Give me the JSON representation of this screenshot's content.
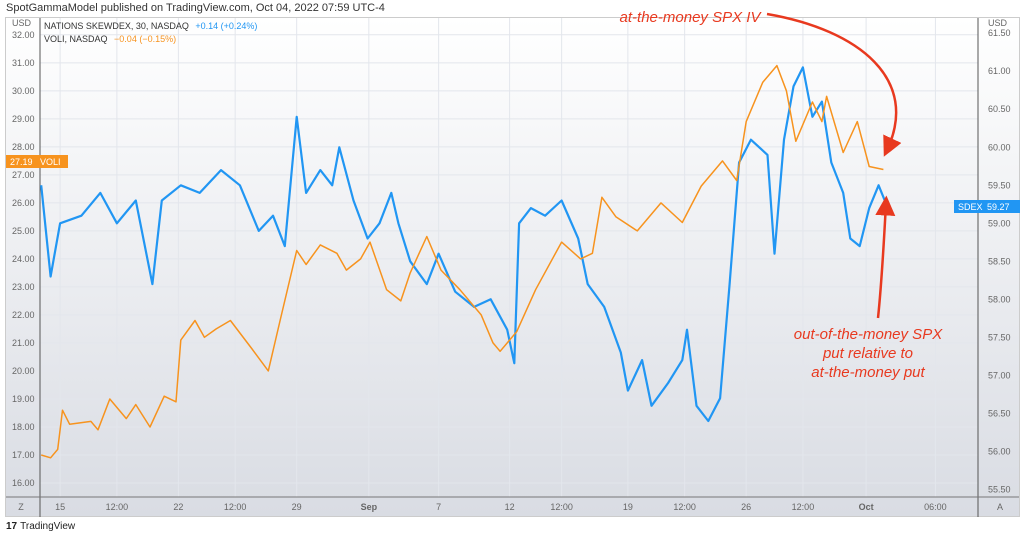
{
  "header": {
    "published": "SpotGammaModel published on TradingView.com, Oct 04, 2022 07:59 UTC-4"
  },
  "legend": [
    {
      "name": "NATIONS SKEWDEX, 30, NASDAQ",
      "change": "+0.14 (+0.24%)",
      "color": "#2196f3"
    },
    {
      "name": "VOLI, NASDAQ",
      "change": "−0.04 (−0.15%)",
      "color": "#f7931e"
    }
  ],
  "footer": {
    "brand": "TradingView",
    "left_button": "Z",
    "right_button": "A"
  },
  "chart_data": {
    "type": "line",
    "currency_left": "USD",
    "currency_right": "USD",
    "x_unit": "trading days from Aug 15, 2022",
    "x_ticks": [
      {
        "x": 0,
        "label": "15"
      },
      {
        "x": 2.4,
        "label": "12:00"
      },
      {
        "x": 5,
        "label": "22"
      },
      {
        "x": 7.4,
        "label": "12:00"
      },
      {
        "x": 10,
        "label": "29"
      },
      {
        "x": 13.05,
        "label": "Sep",
        "bold": true
      },
      {
        "x": 16,
        "label": "7"
      },
      {
        "x": 19,
        "label": "12"
      },
      {
        "x": 21.2,
        "label": "12:00"
      },
      {
        "x": 24,
        "label": "19"
      },
      {
        "x": 26.4,
        "label": "12:00"
      },
      {
        "x": 29,
        "label": "26"
      },
      {
        "x": 31.4,
        "label": "12:00"
      },
      {
        "x": 34.07,
        "label": "Oct",
        "bold": true
      },
      {
        "x": 37,
        "label": "06:00"
      }
    ],
    "xlim": [
      -0.85,
      38.8
    ],
    "left_axis": {
      "ylim": [
        15.5,
        32.6
      ],
      "ticks": [
        "32.00",
        "31.00",
        "30.00",
        "29.00",
        "28.00",
        "27.00",
        "26.00",
        "25.00",
        "24.00",
        "23.00",
        "22.00",
        "21.00",
        "20.00",
        "19.00",
        "18.00",
        "17.00",
        "16.00"
      ]
    },
    "right_axis": {
      "ylim": [
        55.4,
        61.7
      ],
      "ticks": [
        "61.50",
        "61.00",
        "60.50",
        "60.00",
        "59.50",
        "59.00",
        "58.50",
        "58.00",
        "57.50",
        "57.00",
        "56.50",
        "56.00",
        "55.50"
      ]
    },
    "series": [
      {
        "name": "SDEX",
        "axis": "right",
        "color": "#2196f3",
        "last": "59.27",
        "points": [
          [
            -0.8,
            59.5
          ],
          [
            -0.4,
            58.3
          ],
          [
            0,
            59.0
          ],
          [
            0.9,
            59.1
          ],
          [
            1.7,
            59.4
          ],
          [
            2.4,
            59.0
          ],
          [
            3.2,
            59.3
          ],
          [
            3.9,
            58.2
          ],
          [
            4.3,
            59.3
          ],
          [
            5.1,
            59.5
          ],
          [
            5.9,
            59.4
          ],
          [
            6.8,
            59.7
          ],
          [
            7.6,
            59.5
          ],
          [
            8.4,
            58.9
          ],
          [
            9.0,
            59.1
          ],
          [
            9.5,
            58.7
          ],
          [
            10.0,
            60.4
          ],
          [
            10.4,
            59.4
          ],
          [
            11.0,
            59.7
          ],
          [
            11.5,
            59.5
          ],
          [
            11.8,
            60.0
          ],
          [
            12.4,
            59.3
          ],
          [
            13.0,
            58.8
          ],
          [
            13.5,
            59.0
          ],
          [
            14.0,
            59.4
          ],
          [
            14.3,
            59.0
          ],
          [
            14.8,
            58.5
          ],
          [
            15.5,
            58.2
          ],
          [
            16.0,
            58.6
          ],
          [
            16.7,
            58.1
          ],
          [
            17.5,
            57.9
          ],
          [
            18.2,
            58.0
          ],
          [
            18.9,
            57.6
          ],
          [
            19.2,
            57.16
          ],
          [
            19.4,
            59.0
          ],
          [
            19.9,
            59.2
          ],
          [
            20.5,
            59.1
          ],
          [
            21.2,
            59.3
          ],
          [
            21.9,
            58.8
          ],
          [
            22.3,
            58.2
          ],
          [
            23.0,
            57.9
          ],
          [
            23.7,
            57.3
          ],
          [
            24.0,
            56.8
          ],
          [
            24.6,
            57.2
          ],
          [
            25.0,
            56.6
          ],
          [
            25.7,
            56.9
          ],
          [
            26.3,
            57.2
          ],
          [
            26.5,
            57.6
          ],
          [
            26.9,
            56.6
          ],
          [
            27.4,
            56.4
          ],
          [
            27.9,
            56.7
          ],
          [
            28.3,
            58.2
          ],
          [
            28.7,
            59.8
          ],
          [
            29.2,
            60.1
          ],
          [
            29.9,
            59.9
          ],
          [
            30.2,
            58.6
          ],
          [
            30.6,
            60.1
          ],
          [
            31.0,
            60.8
          ],
          [
            31.4,
            61.05
          ],
          [
            31.8,
            60.4
          ],
          [
            32.2,
            60.6
          ],
          [
            32.6,
            59.8
          ],
          [
            33.1,
            59.4
          ],
          [
            33.4,
            58.8
          ],
          [
            33.8,
            58.7
          ],
          [
            34.2,
            59.2
          ],
          [
            34.6,
            59.5
          ],
          [
            34.9,
            59.27
          ]
        ]
      },
      {
        "name": "VOLI",
        "axis": "left",
        "color": "#f7931e",
        "last": "27.19",
        "points": [
          [
            -0.8,
            17.0
          ],
          [
            -0.4,
            16.9
          ],
          [
            -0.1,
            17.2
          ],
          [
            0.1,
            18.6
          ],
          [
            0.4,
            18.1
          ],
          [
            1.3,
            18.2
          ],
          [
            1.6,
            17.9
          ],
          [
            2.1,
            19.0
          ],
          [
            2.8,
            18.3
          ],
          [
            3.2,
            18.8
          ],
          [
            3.8,
            18.0
          ],
          [
            4.4,
            19.1
          ],
          [
            4.9,
            18.9
          ],
          [
            5.1,
            21.1
          ],
          [
            5.7,
            21.8
          ],
          [
            6.1,
            21.2
          ],
          [
            6.6,
            21.5
          ],
          [
            7.2,
            21.8
          ],
          [
            8.1,
            20.8
          ],
          [
            8.8,
            20.0
          ],
          [
            9.3,
            21.8
          ],
          [
            10.0,
            24.3
          ],
          [
            10.4,
            23.8
          ],
          [
            11.0,
            24.5
          ],
          [
            11.7,
            24.2
          ],
          [
            12.1,
            23.6
          ],
          [
            12.7,
            24.0
          ],
          [
            13.1,
            24.6
          ],
          [
            13.8,
            22.9
          ],
          [
            14.4,
            22.5
          ],
          [
            14.8,
            23.5
          ],
          [
            15.5,
            24.8
          ],
          [
            16.1,
            23.6
          ],
          [
            16.9,
            22.9
          ],
          [
            17.8,
            22.0
          ],
          [
            18.3,
            21.0
          ],
          [
            18.6,
            20.7
          ],
          [
            19.3,
            21.4
          ],
          [
            20.1,
            22.9
          ],
          [
            21.2,
            24.6
          ],
          [
            22.0,
            24.0
          ],
          [
            22.5,
            24.2
          ],
          [
            22.9,
            26.2
          ],
          [
            23.5,
            25.5
          ],
          [
            24.4,
            25.0
          ],
          [
            25.4,
            26.0
          ],
          [
            26.3,
            25.3
          ],
          [
            27.1,
            26.6
          ],
          [
            28.0,
            27.5
          ],
          [
            28.6,
            26.8
          ],
          [
            29.0,
            28.9
          ],
          [
            29.7,
            30.3
          ],
          [
            30.3,
            30.9
          ],
          [
            30.7,
            30.0
          ],
          [
            31.1,
            28.2
          ],
          [
            31.8,
            29.6
          ],
          [
            32.2,
            28.9
          ],
          [
            32.4,
            29.8
          ],
          [
            33.1,
            27.8
          ],
          [
            33.7,
            28.9
          ],
          [
            34.2,
            27.3
          ],
          [
            34.8,
            27.19
          ]
        ]
      }
    ],
    "annotations": [
      "at-the-money SPX IV",
      "out-of-the-money SPX",
      "put relative to",
      "at-the-money put"
    ]
  }
}
